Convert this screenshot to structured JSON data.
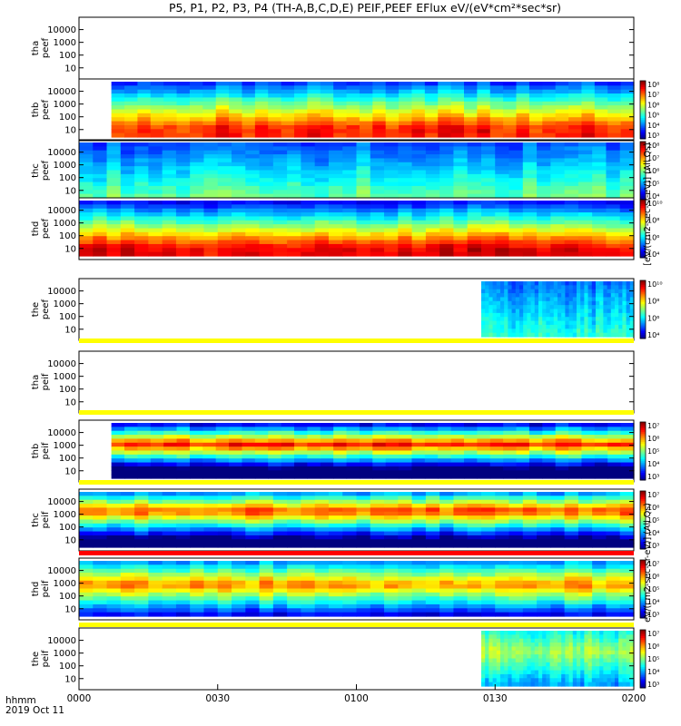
{
  "title": "P5, P1, P2, P3, P4 (TH-A,B,C,D,E) PEIF,PEEF EFlux eV/(eV*cm²*sec*sr)",
  "footer": {
    "time_label": "hhmm",
    "date_label": "2019 Oct 11"
  },
  "x_ticks": [
    "0000",
    "0030",
    "0100",
    "0130",
    "0200"
  ],
  "y_ticks": [
    "10",
    "100",
    "1000",
    "10000"
  ],
  "colorbar_labels": {
    "electron": "[eV/(cm2-sec-sr-eV)] (All Qs)",
    "ion": "[eV/(cm2-sec-sr-eV)] (All Qs)",
    "ion_text": "eV/(cm2-sec-sr-eV)] (All Qs)"
  },
  "colors": {
    "axis": "#000000",
    "yellow_band": "#ffff00",
    "red_band": "#ff0000",
    "background": "#ffffff"
  },
  "chart_data": {
    "type": "heatmap",
    "x_range_hhmm": [
      "0000",
      "0200"
    ],
    "ylim_eV": [
      5,
      25000
    ],
    "y_scale": "log",
    "panels": [
      {
        "id": "tha-peef",
        "label_lines": [
          "tha",
          "peef"
        ],
        "empty": true,
        "colorbar": null
      },
      {
        "id": "thb-peef",
        "label_lines": [
          "thb",
          "peef"
        ],
        "data_start_min": 7,
        "data_end_min": 120,
        "colorbar": {
          "min_exp": 3,
          "max_exp": 8,
          "labels": [
            "10³",
            "10⁴",
            "10⁵",
            "10⁶",
            "10⁷",
            "10⁸"
          ]
        }
      },
      {
        "id": "thc-peef",
        "label_lines": [
          "thc",
          "peef"
        ],
        "data_start_min": 0,
        "data_end_min": 120,
        "colorbar": {
          "min_exp": 4,
          "max_exp": 8,
          "labels": [
            "10⁴",
            "10⁵",
            "10⁶",
            "10⁷",
            "10⁸"
          ]
        }
      },
      {
        "id": "thd-peef",
        "label_lines": [
          "thd",
          "peef"
        ],
        "data_start_min": 0,
        "data_end_min": 120,
        "colorbar": {
          "min_exp": 4,
          "max_exp": 10,
          "labels": [
            "10⁴",
            "10⁶",
            "10⁸",
            "10¹⁰"
          ]
        }
      },
      {
        "id": "the-peef",
        "label_lines": [
          "the",
          "peef"
        ],
        "data_start_min": 87,
        "data_end_min": 120,
        "colorbar": {
          "min_exp": 4,
          "max_exp": 10,
          "labels": [
            "10⁴",
            "10⁶",
            "10⁸",
            "10¹⁰"
          ]
        }
      },
      {
        "id": "tha-peif",
        "label_lines": [
          "tha",
          "peif"
        ],
        "empty": true,
        "colorbar": null
      },
      {
        "id": "thb-peif",
        "label_lines": [
          "thb",
          "peif"
        ],
        "data_start_min": 7,
        "data_end_min": 120,
        "colorbar": {
          "min_exp": 3,
          "max_exp": 7,
          "labels": [
            "10³",
            "10⁴",
            "10⁵",
            "10⁶",
            "10⁷"
          ]
        }
      },
      {
        "id": "thc-peif",
        "label_lines": [
          "thc",
          "peif"
        ],
        "data_start_min": 0,
        "data_end_min": 120,
        "colorbar": {
          "min_exp": 3,
          "max_exp": 7,
          "labels": [
            "10³",
            "10⁴",
            "10⁵",
            "10⁶",
            "10⁷"
          ]
        }
      },
      {
        "id": "thd-peif",
        "label_lines": [
          "thd",
          "peif"
        ],
        "data_start_min": 0,
        "data_end_min": 120,
        "colorbar": {
          "min_exp": 3,
          "max_exp": 7,
          "labels": [
            "10³",
            "10⁴",
            "10⁵",
            "10⁶",
            "10⁷"
          ]
        }
      },
      {
        "id": "the-peif",
        "label_lines": [
          "the",
          "peif"
        ],
        "data_start_min": 87,
        "data_end_min": 120,
        "colorbar": {
          "min_exp": 3,
          "max_exp": 7,
          "labels": [
            "10³",
            "10⁴",
            "10⁵",
            "10⁶",
            "10⁷"
          ]
        }
      }
    ]
  }
}
